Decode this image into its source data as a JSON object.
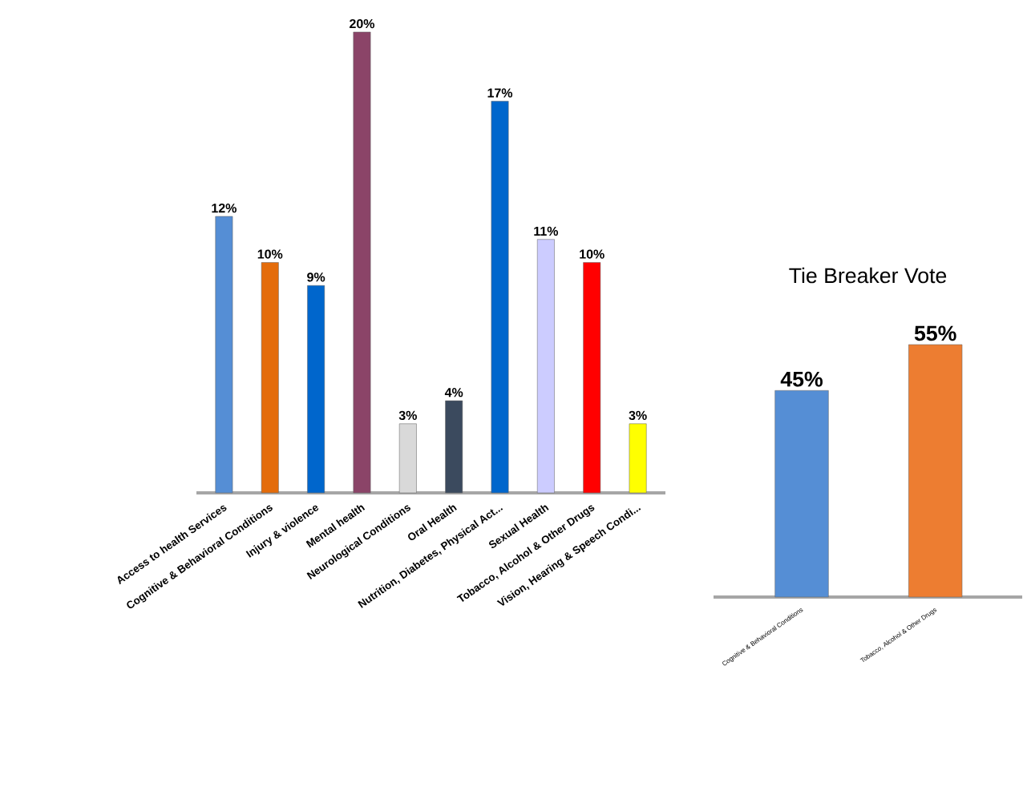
{
  "chart_data": [
    {
      "type": "bar",
      "categories": [
        "Access to health Services",
        "Cognitive & Behavioral Conditions",
        "Injury & violence",
        "Mental health",
        "Neurological Conditions",
        "Oral Health",
        "Nutrition, Diabetes, Physical Act...",
        "Sexual Health",
        "Tobacco, Alcohol & Other Drugs",
        "Vision, Hearing & Speech Condi..."
      ],
      "values": [
        12,
        10,
        9,
        20,
        3,
        4,
        17,
        11,
        10,
        3
      ],
      "colors": [
        "#558ed5",
        "#e46c0a",
        "#0066cc",
        "#8b4468",
        "#d9d9d9",
        "#3b4a5e",
        "#0066cc",
        "#ccccff",
        "#ff0000",
        "#ffff00"
      ],
      "value_labels": [
        "12%",
        "10%",
        "9%",
        "20%",
        "3%",
        "4%",
        "17%",
        "11%",
        "10%",
        "3%"
      ]
    },
    {
      "type": "bar",
      "title": "Tie Breaker Vote",
      "categories": [
        "Cognitive & Behavioral Conditions",
        "Tobacco, Alcohol & Other Drugs"
      ],
      "values": [
        45,
        55
      ],
      "colors": [
        "#558ed5",
        "#ed7d31"
      ],
      "value_labels": [
        "45%",
        "55%"
      ]
    }
  ]
}
